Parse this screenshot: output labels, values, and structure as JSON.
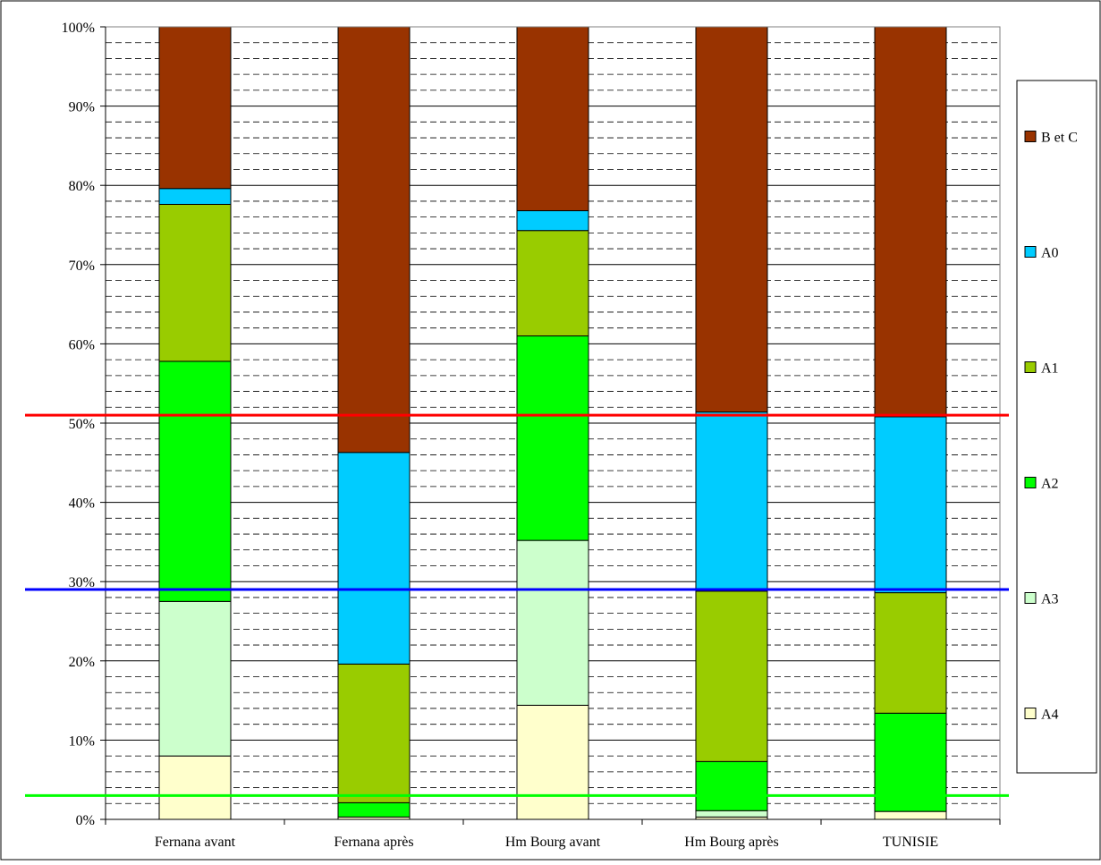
{
  "chart_data": {
    "type": "bar",
    "stacked": true,
    "percent_stacked": true,
    "categories": [
      "Fernana avant",
      "Fernana après",
      "Hm Bourg avant",
      "Hm Bourg après",
      "TUNISIE"
    ],
    "series": [
      {
        "name": "A4",
        "color": "#FFFFCC",
        "values": [
          8,
          0.3,
          14.4,
          0.3,
          1
        ]
      },
      {
        "name": "A3",
        "color": "#CCFFCC",
        "values": [
          19.5,
          0,
          20.8,
          0.8,
          0
        ]
      },
      {
        "name": "A2",
        "color": "#00FF00",
        "values": [
          30.3,
          1.8,
          25.8,
          6.2,
          12.4
        ]
      },
      {
        "name": "A1",
        "color": "#99CC00",
        "values": [
          19.8,
          17.5,
          13.3,
          21.5,
          15.2
        ]
      },
      {
        "name": "A0",
        "color": "#00CCFF",
        "values": [
          2,
          26.7,
          2.5,
          22.6,
          22.2
        ]
      },
      {
        "name": "B et C",
        "color": "#993300",
        "values": [
          20.4,
          53.7,
          23.2,
          48.6,
          49.2
        ]
      }
    ],
    "yticks": [
      "0%",
      "10%",
      "20%",
      "30%",
      "40%",
      "50%",
      "60%",
      "70%",
      "80%",
      "90%",
      "100%"
    ],
    "ylim": [
      0,
      100
    ],
    "minor_grid_step": 2,
    "reference_lines": [
      {
        "value": 51,
        "color": "#FF0000"
      },
      {
        "value": 29,
        "color": "#0000FF"
      },
      {
        "value": 3,
        "color": "#00FF00"
      }
    ],
    "legend_order": [
      "B et C",
      "A0",
      "A1",
      "A2",
      "A3",
      "A4"
    ],
    "legend_position": "right",
    "title": "",
    "xlabel": "",
    "ylabel": ""
  }
}
